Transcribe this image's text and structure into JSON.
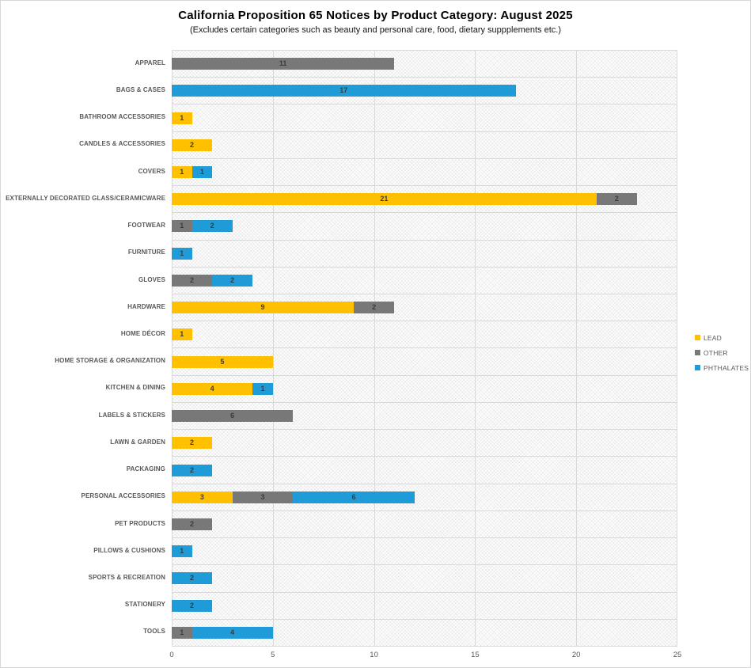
{
  "chart_data": {
    "type": "bar",
    "orientation": "horizontal",
    "stacked": true,
    "title": "California Proposition 65 Notices by Product Category: August 2025",
    "subtitle": "(Excludes certain categories such as beauty and personal care, food, dietary suppplements etc.)",
    "xlabel": "",
    "ylabel": "",
    "xlim": [
      0,
      25
    ],
    "x_ticks": [
      0,
      5,
      10,
      15,
      20,
      25
    ],
    "grid": true,
    "legend_position": "right",
    "background_pattern": "light-diagonal-crosshatch",
    "categories": [
      "APPAREL",
      "BAGS & CASES",
      "BATHROOM ACCESSORIES",
      "CANDLES & ACCESSORIES",
      "COVERS",
      "EXTERNALLY DECORATED GLASS/CERAMICWARE",
      "FOOTWEAR",
      "FURNITURE",
      "GLOVES",
      "HARDWARE",
      "HOME DÉCOR",
      "HOME STORAGE & ORGANIZATION",
      "KITCHEN & DINING",
      "LABELS & STICKERS",
      "LAWN & GARDEN",
      "PACKAGING",
      "PERSONAL ACCESSORIES",
      "PET PRODUCTS",
      "PILLOWS & CUSHIONS",
      "SPORTS & RECREATION",
      "STATIONERY",
      "TOOLS"
    ],
    "series": [
      {
        "name": "LEAD",
        "color": "#FFC000",
        "values": [
          0,
          0,
          1,
          2,
          1,
          21,
          0,
          0,
          0,
          9,
          1,
          5,
          4,
          0,
          2,
          0,
          3,
          0,
          0,
          0,
          0,
          0
        ]
      },
      {
        "name": "OTHER",
        "color": "#787878",
        "values": [
          11,
          0,
          0,
          0,
          0,
          2,
          1,
          0,
          2,
          2,
          0,
          0,
          0,
          6,
          0,
          0,
          3,
          2,
          0,
          0,
          0,
          1
        ]
      },
      {
        "name": "PHTHALATES",
        "color": "#1F9CD7",
        "values": [
          0,
          17,
          0,
          0,
          1,
          0,
          2,
          1,
          2,
          0,
          0,
          0,
          1,
          0,
          0,
          2,
          6,
          0,
          1,
          2,
          2,
          4
        ]
      }
    ]
  },
  "colors": {
    "lead": "#FFC000",
    "other": "#787878",
    "phthalates": "#1F9CD7",
    "gridline": "#D9D9D9",
    "axis_text": "#595959",
    "value_label": "#3B3B3B"
  }
}
